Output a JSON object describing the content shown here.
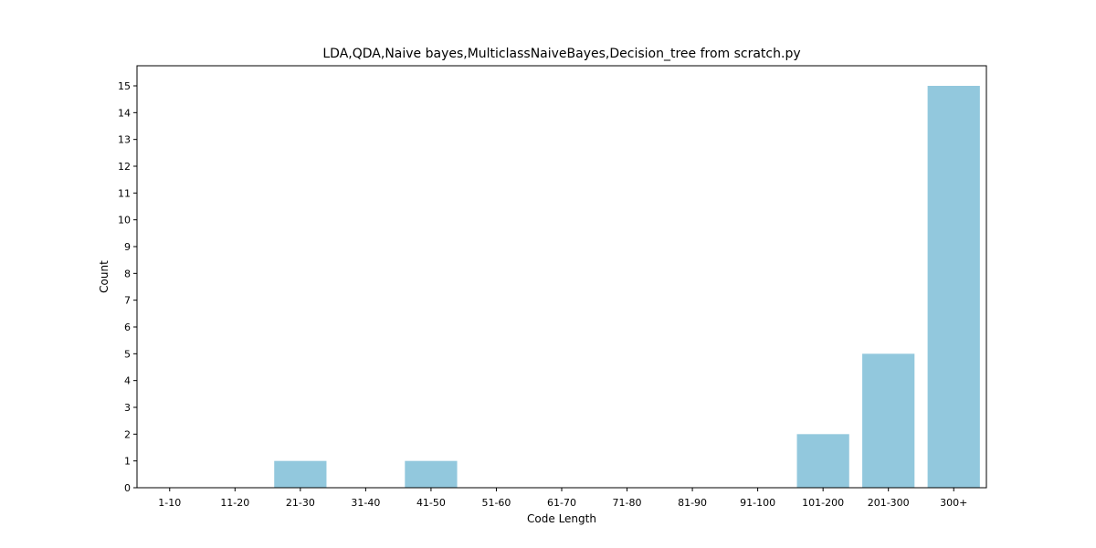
{
  "chart_data": {
    "type": "bar",
    "title": "LDA,QDA,Naive bayes,MulticlassNaiveBayes,Decision_tree from scratch.py",
    "xlabel": "Code Length",
    "ylabel": "Count",
    "categories": [
      "1-10",
      "11-20",
      "21-30",
      "31-40",
      "41-50",
      "51-60",
      "61-70",
      "71-80",
      "81-90",
      "91-100",
      "101-200",
      "201-300",
      "300+"
    ],
    "values": [
      0,
      0,
      1,
      0,
      1,
      0,
      0,
      0,
      0,
      0,
      2,
      5,
      15
    ],
    "ylim": [
      0,
      15.75
    ],
    "yticks": [
      0,
      1,
      2,
      3,
      4,
      5,
      6,
      7,
      8,
      9,
      10,
      11,
      12,
      13,
      14,
      15
    ],
    "bar_color": "#92c8dd",
    "grid": false,
    "legend": "none"
  }
}
